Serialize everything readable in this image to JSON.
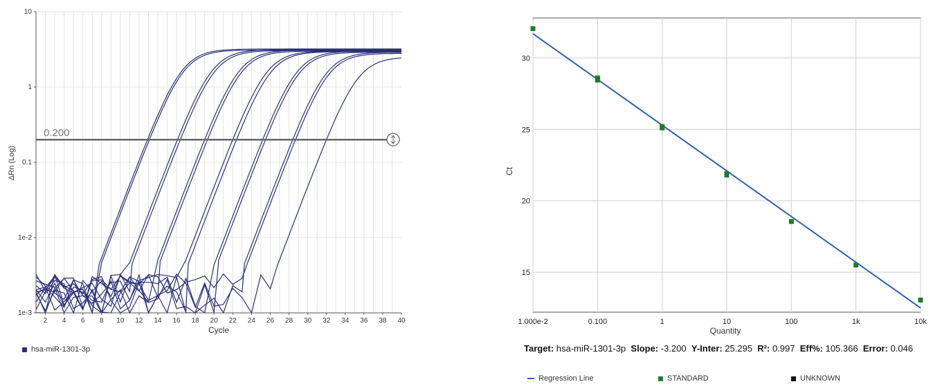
{
  "chart_data": [
    {
      "type": "line",
      "xlabel": "Cycle",
      "ylabel": "ΔRn (Log)",
      "yscale": "log",
      "xlim": [
        1,
        40
      ],
      "ylim": [
        0.001,
        10
      ],
      "x_ticks": [
        "2",
        "4",
        "6",
        "8",
        "10",
        "12",
        "14",
        "16",
        "18",
        "20",
        "22",
        "24",
        "26",
        "28",
        "30",
        "32",
        "34",
        "36",
        "38",
        "40"
      ],
      "y_ticks": [
        {
          "value": 10,
          "label": "10"
        },
        {
          "value": 1,
          "label": "1"
        },
        {
          "value": 0.1,
          "label": "0.1"
        },
        {
          "value": 0.01,
          "label": "1e-2"
        },
        {
          "value": 0.001,
          "label": "1e-3"
        }
      ],
      "threshold": {
        "value": 0.2,
        "label": "0.200"
      },
      "grid": true,
      "legend_position": "bottom-left",
      "series_color": "#2a2f7a",
      "series": [
        {
          "name": "hsa-miR-1301-3p",
          "ct": 12.9,
          "plateau": 3.2
        },
        {
          "name": "hsa-miR-1301-3p",
          "ct": 13.1,
          "plateau": 3.1
        },
        {
          "name": "hsa-miR-1301-3p",
          "ct": 16.1,
          "plateau": 3.15
        },
        {
          "name": "hsa-miR-1301-3p",
          "ct": 16.4,
          "plateau": 3.05
        },
        {
          "name": "hsa-miR-1301-3p",
          "ct": 19.0,
          "plateau": 3.1
        },
        {
          "name": "hsa-miR-1301-3p",
          "ct": 19.3,
          "plateau": 3.0
        },
        {
          "name": "hsa-miR-1301-3p",
          "ct": 22.0,
          "plateau": 3.0
        },
        {
          "name": "hsa-miR-1301-3p",
          "ct": 22.4,
          "plateau": 2.95
        },
        {
          "name": "hsa-miR-1301-3p",
          "ct": 25.2,
          "plateau": 3.0
        },
        {
          "name": "hsa-miR-1301-3p",
          "ct": 25.5,
          "plateau": 2.9
        },
        {
          "name": "hsa-miR-1301-3p",
          "ct": 28.4,
          "plateau": 2.9
        },
        {
          "name": "hsa-miR-1301-3p",
          "ct": 28.7,
          "plateau": 2.8
        },
        {
          "name": "hsa-miR-1301-3p",
          "ct": 32.0,
          "plateau": 2.5
        }
      ]
    },
    {
      "type": "scatter",
      "xlabel": "Quantity",
      "ylabel": "Ct",
      "xscale": "log",
      "xlim": [
        0.01,
        10000
      ],
      "ylim": [
        12.2,
        32.8
      ],
      "x_ticks": [
        {
          "value": 0.01,
          "label": "1.000e-2"
        },
        {
          "value": 0.1,
          "label": "0.100"
        },
        {
          "value": 1,
          "label": "1"
        },
        {
          "value": 10,
          "label": "10"
        },
        {
          "value": 100,
          "label": "100"
        },
        {
          "value": 1000,
          "label": "1k"
        },
        {
          "value": 10000,
          "label": "10k"
        }
      ],
      "y_ticks": [
        15,
        20,
        25,
        30
      ],
      "grid": true,
      "points": [
        {
          "x": 0.01,
          "y": 32.05
        },
        {
          "x": 0.1,
          "y": 28.6
        },
        {
          "x": 0.1,
          "y": 28.45
        },
        {
          "x": 1,
          "y": 25.2
        },
        {
          "x": 1,
          "y": 25.1
        },
        {
          "x": 10,
          "y": 21.9
        },
        {
          "x": 10,
          "y": 21.8
        },
        {
          "x": 100,
          "y": 18.55
        },
        {
          "x": 1000,
          "y": 15.5
        },
        {
          "x": 10000,
          "y": 13.05
        }
      ],
      "regression": {
        "slope": -3.2,
        "intercept": 25.295
      },
      "point_color": "#1e7b2a",
      "line_color": "#2f5fb3",
      "legend_position": "bottom"
    }
  ],
  "amp_legend": {
    "label": "hsa-miR-1301-3p",
    "color": "#2a2f7a"
  },
  "stats": {
    "target_label": "Target:",
    "target_value": "hsa-miR-1301-3p",
    "slope_label": "Slope:",
    "slope_value": "-3.200",
    "yinter_label": "Y-Inter:",
    "yinter_value": "25.295",
    "r2_label": "R²:",
    "r2_value": "0.997",
    "eff_label": "Eff%:",
    "eff_value": "105.366",
    "error_label": "Error:",
    "error_value": "0.046"
  },
  "std_legend": {
    "regression_label": "Regression Line",
    "standard_label": "STANDARD",
    "standard_color": "#1e7b2a",
    "unknown_label": "UNKNOWN",
    "unknown_color": "#111111"
  }
}
